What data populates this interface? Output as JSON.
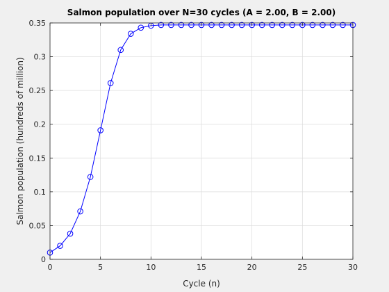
{
  "chart_data": {
    "type": "line",
    "title": "Salmon population over N=30 cycles (A = 2.00, B = 2.00)",
    "xlabel": "Cycle (n)",
    "ylabel": "Salmon population (hundreds of million)",
    "xlim": [
      0,
      30
    ],
    "ylim": [
      0,
      0.35
    ],
    "xticks": [
      0,
      5,
      10,
      15,
      20,
      25,
      30
    ],
    "yticks": [
      0,
      0.05,
      0.1,
      0.15,
      0.2,
      0.25,
      0.3,
      0.35
    ],
    "xtick_labels": [
      "0",
      "5",
      "10",
      "15",
      "20",
      "25",
      "30"
    ],
    "ytick_labels": [
      "0",
      "0.05",
      "0.1",
      "0.15",
      "0.2",
      "0.25",
      "0.3",
      "0.35"
    ],
    "grid": true,
    "series": [
      {
        "color": "#0000ff",
        "marker": "circle",
        "x": [
          0,
          1,
          2,
          3,
          4,
          5,
          6,
          7,
          8,
          9,
          10,
          11,
          12,
          13,
          14,
          15,
          16,
          17,
          18,
          19,
          20,
          21,
          22,
          23,
          24,
          25,
          26,
          27,
          28,
          29,
          30
        ],
        "y": [
          0.01,
          0.02,
          0.038,
          0.071,
          0.122,
          0.191,
          0.261,
          0.31,
          0.334,
          0.343,
          0.346,
          0.347,
          0.347,
          0.347,
          0.347,
          0.347,
          0.347,
          0.347,
          0.347,
          0.347,
          0.347,
          0.347,
          0.347,
          0.347,
          0.347,
          0.347,
          0.347,
          0.347,
          0.347,
          0.347,
          0.347
        ]
      }
    ]
  }
}
